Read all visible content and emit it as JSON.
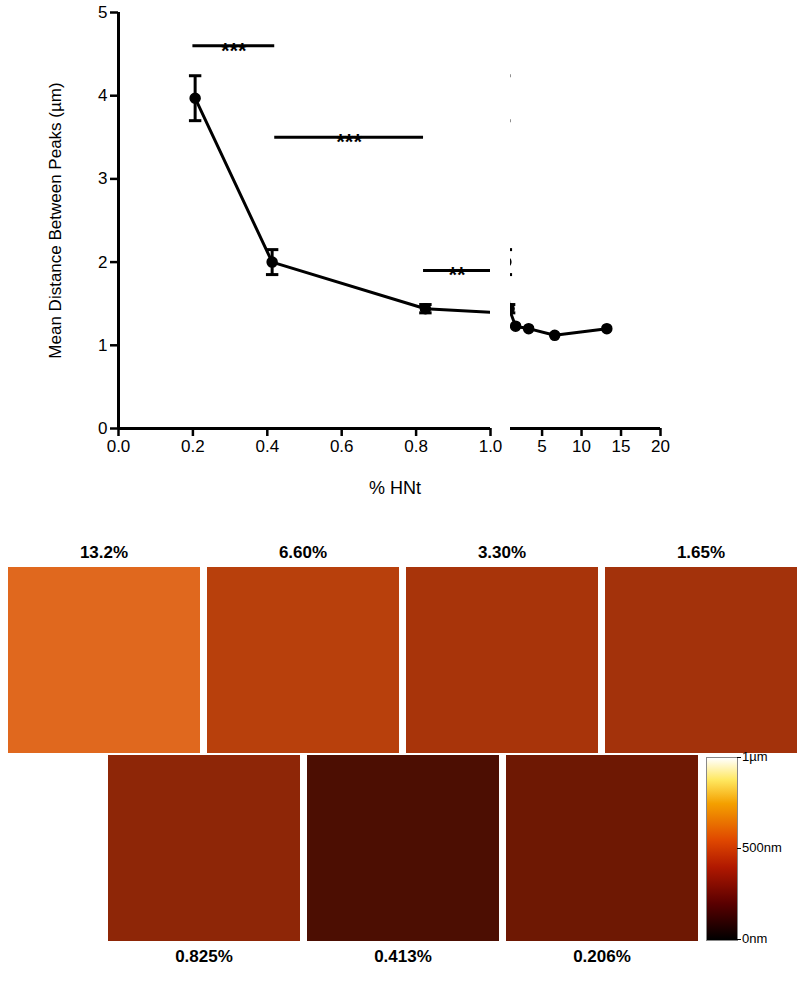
{
  "chart_data": {
    "type": "line",
    "x_label": "% HNt",
    "y_label": "Mean Distance Between Peaks (µm)",
    "x": [
      0.206,
      0.413,
      0.825,
      1.65,
      3.3,
      6.6,
      13.2
    ],
    "values": [
      3.97,
      2.0,
      1.44,
      1.23,
      1.2,
      1.12,
      1.2
    ],
    "errors": [
      0.27,
      0.15,
      0.05,
      null,
      null,
      null,
      null
    ],
    "color": "#000000",
    "marker": "circle",
    "ylim": [
      0,
      5
    ],
    "yticks": [
      0,
      1,
      2,
      3,
      4,
      5
    ],
    "x_segments": [
      {
        "xlim": [
          0,
          1
        ],
        "xticks": [
          {
            "value": 0,
            "label": "0.0"
          },
          0.2,
          0.4,
          0.6,
          0.8,
          {
            "value": 1,
            "label": "1.0"
          }
        ]
      },
      {
        "xlim": [
          1,
          20
        ],
        "xticks": [
          5,
          10,
          15,
          20
        ]
      }
    ],
    "significance": [
      {
        "x1": 0.2,
        "x2": 0.42,
        "y": 4.6,
        "label": "***"
      },
      {
        "x1": 0.42,
        "x2": 0.82,
        "y": 3.5,
        "label": "***"
      },
      {
        "x1": 0.82,
        "x2": 1.0,
        "y": 1.9,
        "label": "**"
      }
    ]
  },
  "afm_images": {
    "panels": [
      {
        "label": "13.2%",
        "color": "#e0681e"
      },
      {
        "label": "6.60%",
        "color": "#b8400c"
      },
      {
        "label": "3.30%",
        "color": "#a8340a"
      },
      {
        "label": "1.65%",
        "color": "#a3320b"
      },
      {
        "label": "0.825%",
        "color": "#8e2607"
      },
      {
        "label": "0.413%",
        "color": "#4c0e02"
      },
      {
        "label": "0.206%",
        "color": "#6e1803"
      }
    ],
    "colorbar": {
      "range": [
        0,
        1000
      ],
      "ticks": [
        {
          "value": 0,
          "label": "0nm"
        },
        {
          "value": 500,
          "label": "500nm"
        },
        {
          "value": 1000,
          "label": "1µm"
        }
      ]
    }
  }
}
